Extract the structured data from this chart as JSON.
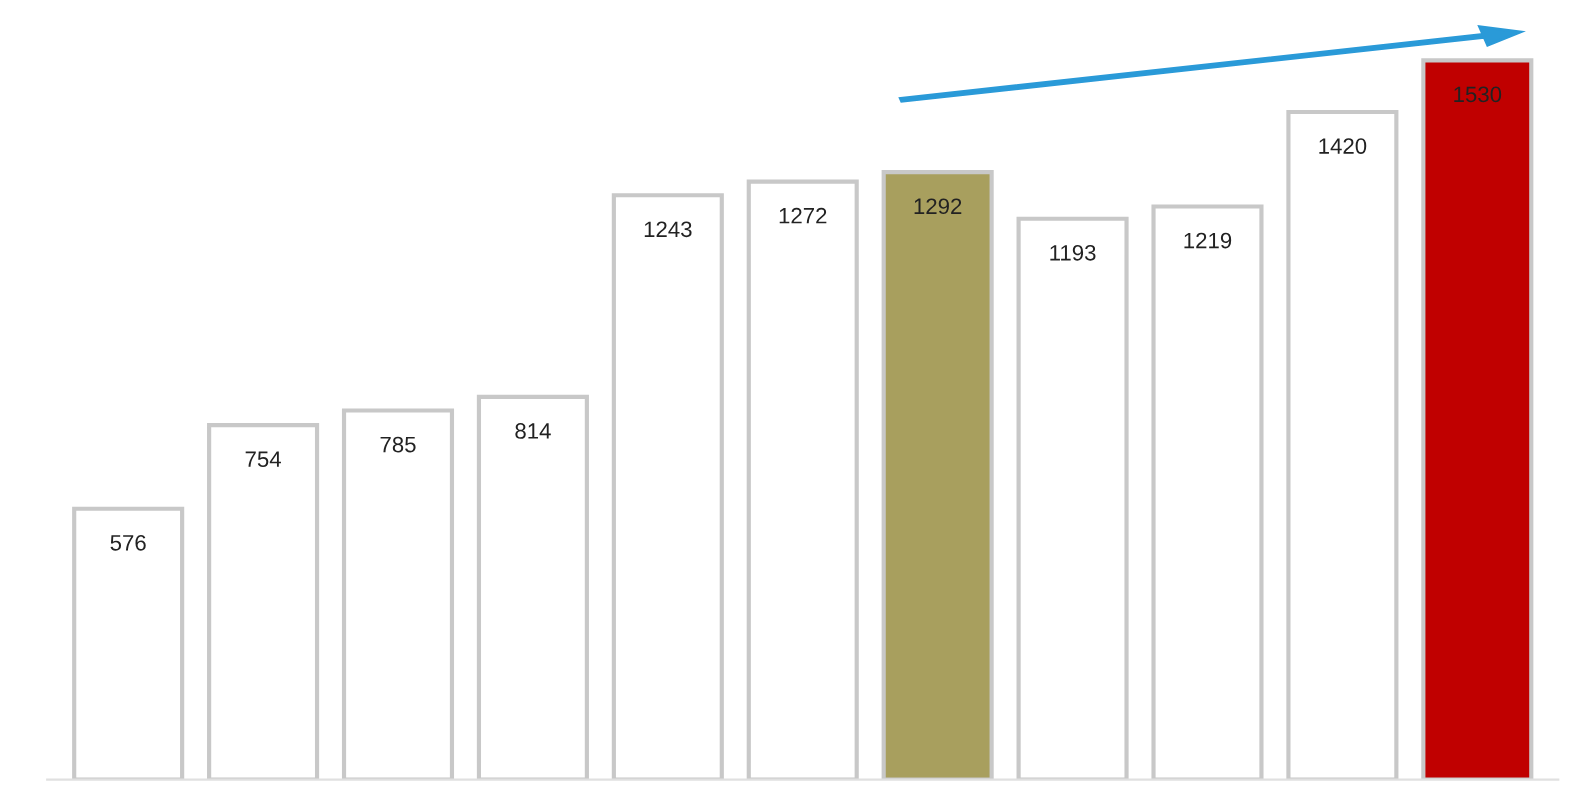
{
  "chart_data": {
    "type": "bar",
    "categories": [
      null,
      null,
      null,
      null,
      null,
      null,
      null,
      null,
      null,
      null,
      null
    ],
    "values": [
      576,
      754,
      785,
      814,
      1243,
      1272,
      1292,
      1193,
      1219,
      1420,
      1530
    ],
    "colors": [
      "#ffffff",
      "#ffffff",
      "#ffffff",
      "#ffffff",
      "#ffffff",
      "#ffffff",
      "#a89f5e",
      "#ffffff",
      "#ffffff",
      "#ffffff",
      "#c00000"
    ],
    "data_labels": true,
    "grid": false,
    "legend": false
  }
}
